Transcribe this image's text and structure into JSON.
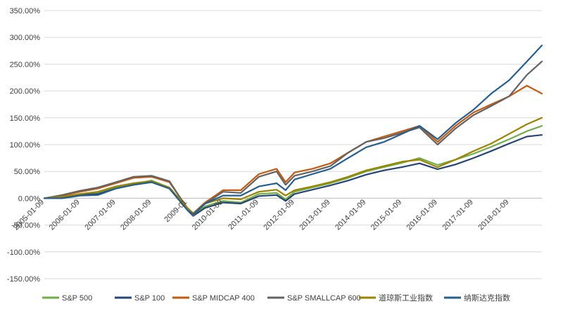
{
  "chart_data": {
    "type": "line",
    "title": "",
    "xlabel": "",
    "ylabel": "",
    "ylim": [
      -1.5,
      3.5
    ],
    "y_ticks": [
      "350.00%",
      "300.00%",
      "250.00%",
      "200.00%",
      "150.00%",
      "100.00%",
      "50.00%",
      "0.00%",
      "-50.00%",
      "-100.00%",
      "-150.00%"
    ],
    "x_ticks": [
      "2005-01-09",
      "2006-01-09",
      "2007-01-09",
      "2008-01-09",
      "2009-01-09",
      "2010-01-09",
      "2011-01-09",
      "2012-01-09",
      "2013-01-09",
      "2014-01-09",
      "2015-01-09",
      "2016-01-09",
      "2017-01-09",
      "2018-01-09"
    ],
    "x_tick_labels": [
      "2005-01-09",
      "2006-01-09",
      "2007-01-09",
      "2008-01-09",
      "2009-01",
      "2010-01-09",
      "2011-01-09",
      "2012-01-09",
      "2013-01-09",
      "2014-01-09",
      "2015-01-09",
      "2016-01-09",
      "2017-01-09",
      "2018-01-09"
    ],
    "grid": true,
    "legend_position": "bottom",
    "x": [
      "2005-01-09",
      "2005-07-09",
      "2006-01-09",
      "2006-07-09",
      "2007-01-09",
      "2007-07-09",
      "2008-01-09",
      "2008-07-09",
      "2009-01-09",
      "2009-03-09",
      "2009-07-09",
      "2010-01-09",
      "2010-07-09",
      "2011-01-09",
      "2011-07-09",
      "2011-10-09",
      "2012-01-09",
      "2012-07-09",
      "2013-01-09",
      "2013-07-09",
      "2014-01-09",
      "2014-07-09",
      "2015-01-09",
      "2015-07-09",
      "2016-01-09",
      "2016-07-09",
      "2017-01-09",
      "2017-07-09",
      "2018-01-09",
      "2018-07-09",
      "2018-12-09"
    ],
    "series": [
      {
        "name": "S&P 500",
        "color": "#70ad47",
        "values": [
          0.0,
          0.02,
          0.08,
          0.1,
          0.2,
          0.27,
          0.33,
          0.2,
          -0.2,
          -0.3,
          -0.15,
          -0.05,
          -0.08,
          0.08,
          0.1,
          -0.02,
          0.12,
          0.2,
          0.28,
          0.38,
          0.5,
          0.58,
          0.66,
          0.75,
          0.62,
          0.72,
          0.83,
          0.96,
          1.1,
          1.25,
          1.35
        ]
      },
      {
        "name": "S&P 100",
        "color": "#264478",
        "values": [
          0.0,
          0.01,
          0.06,
          0.08,
          0.18,
          0.25,
          0.3,
          0.18,
          -0.22,
          -0.33,
          -0.18,
          -0.08,
          -0.1,
          0.04,
          0.06,
          -0.05,
          0.08,
          0.16,
          0.24,
          0.33,
          0.44,
          0.52,
          0.58,
          0.65,
          0.54,
          0.63,
          0.75,
          0.88,
          1.02,
          1.15,
          1.18
        ]
      },
      {
        "name": "S&P MIDCAP 400",
        "color": "#c55a11",
        "values": [
          0.0,
          0.05,
          0.12,
          0.18,
          0.28,
          0.38,
          0.4,
          0.3,
          -0.18,
          -0.28,
          -0.08,
          0.15,
          0.15,
          0.45,
          0.55,
          0.3,
          0.48,
          0.55,
          0.65,
          0.85,
          1.05,
          1.15,
          1.25,
          1.35,
          1.05,
          1.35,
          1.6,
          1.75,
          1.9,
          2.1,
          1.95
        ]
      },
      {
        "name": "S&P SMALLCAP 600",
        "color": "#636363",
        "values": [
          0.0,
          0.06,
          0.14,
          0.2,
          0.3,
          0.4,
          0.42,
          0.32,
          -0.2,
          -0.32,
          -0.1,
          0.12,
          0.1,
          0.4,
          0.5,
          0.25,
          0.42,
          0.5,
          0.6,
          0.85,
          1.05,
          1.12,
          1.22,
          1.32,
          1.0,
          1.3,
          1.55,
          1.72,
          1.9,
          2.3,
          2.55
        ]
      },
      {
        "name": "道琼斯工业指数",
        "color": "#9c8300",
        "values": [
          0.0,
          0.03,
          0.08,
          0.12,
          0.22,
          0.28,
          0.32,
          0.2,
          -0.18,
          -0.28,
          -0.1,
          0.0,
          -0.02,
          0.12,
          0.16,
          0.05,
          0.15,
          0.22,
          0.3,
          0.4,
          0.52,
          0.6,
          0.68,
          0.72,
          0.58,
          0.72,
          0.88,
          1.02,
          1.2,
          1.38,
          1.5
        ]
      },
      {
        "name": "纳斯达克指数",
        "color": "#255e91",
        "values": [
          0.0,
          0.0,
          0.05,
          0.06,
          0.18,
          0.25,
          0.3,
          0.18,
          -0.22,
          -0.3,
          -0.1,
          0.05,
          0.05,
          0.22,
          0.28,
          0.15,
          0.35,
          0.45,
          0.55,
          0.75,
          0.95,
          1.05,
          1.2,
          1.35,
          1.1,
          1.4,
          1.65,
          1.95,
          2.2,
          2.55,
          2.85
        ]
      }
    ]
  }
}
